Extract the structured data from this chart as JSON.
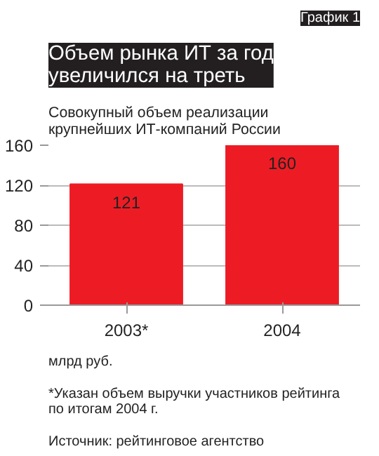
{
  "chart_data": {
    "type": "bar",
    "title": "Объем рынка ИТ за год увеличился на треть",
    "subtitle": "Совокупный объем реализации крупнейших ИТ-компаний России",
    "categories": [
      "2003*",
      "2004"
    ],
    "values": [
      121,
      160
    ],
    "color": "#ed1c24",
    "ylim": [
      0,
      160
    ],
    "yticks": [
      0,
      40,
      80,
      120,
      160
    ],
    "grid": "y",
    "data_labels": true,
    "annotations": [
      "График 1",
      "млрд руб.",
      "*Указан объем выручки участников рейтинга по итогам 2004 г.",
      "Источник: рейтинговое агентство"
    ]
  }
}
